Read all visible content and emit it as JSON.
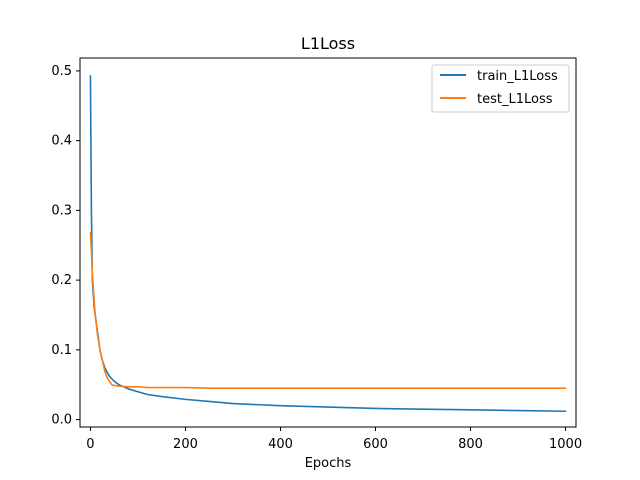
{
  "chart_data": {
    "type": "line",
    "title": "L1Loss",
    "xlabel": "Epochs",
    "ylabel": "",
    "xlim": [
      -22,
      1022
    ],
    "ylim": [
      -0.0106,
      0.5185
    ],
    "xticks": [
      0,
      200,
      400,
      600,
      800,
      1000
    ],
    "xtick_labels": [
      "0",
      "200",
      "400",
      "600",
      "800",
      "1000"
    ],
    "yticks": [
      0.0,
      0.1,
      0.2,
      0.3,
      0.4,
      0.5
    ],
    "ytick_labels": [
      "0.0",
      "0.1",
      "0.2",
      "0.3",
      "0.4",
      "0.5"
    ],
    "grid": false,
    "legend_position": "top-right",
    "series": [
      {
        "name": "train_L1Loss",
        "color": "#1f77b4",
        "x": [
          0,
          2,
          4,
          6,
          8,
          10,
          12,
          15,
          18,
          20,
          25,
          30,
          35,
          40,
          50,
          60,
          70,
          80,
          100,
          120,
          150,
          200,
          250,
          300,
          400,
          500,
          600,
          700,
          800,
          900,
          1000
        ],
        "y": [
          0.493,
          0.3,
          0.2,
          0.18,
          0.16,
          0.15,
          0.14,
          0.125,
          0.11,
          0.1,
          0.085,
          0.075,
          0.068,
          0.062,
          0.055,
          0.05,
          0.047,
          0.044,
          0.04,
          0.036,
          0.033,
          0.029,
          0.026,
          0.023,
          0.02,
          0.018,
          0.016,
          0.015,
          0.014,
          0.013,
          0.012
        ]
      },
      {
        "name": "test_L1Loss",
        "color": "#ff7f0e",
        "x": [
          0,
          2,
          4,
          6,
          8,
          10,
          12,
          15,
          18,
          20,
          25,
          30,
          35,
          40,
          45,
          50,
          60,
          80,
          100,
          120,
          150,
          170,
          200,
          250,
          300,
          400,
          500,
          600,
          700,
          800,
          900,
          1000
        ],
        "y": [
          0.268,
          0.24,
          0.21,
          0.19,
          0.17,
          0.15,
          0.14,
          0.12,
          0.11,
          0.1,
          0.085,
          0.07,
          0.06,
          0.055,
          0.05,
          0.049,
          0.048,
          0.047,
          0.047,
          0.046,
          0.046,
          0.046,
          0.046,
          0.045,
          0.045,
          0.045,
          0.045,
          0.045,
          0.045,
          0.045,
          0.045,
          0.045
        ]
      }
    ]
  }
}
